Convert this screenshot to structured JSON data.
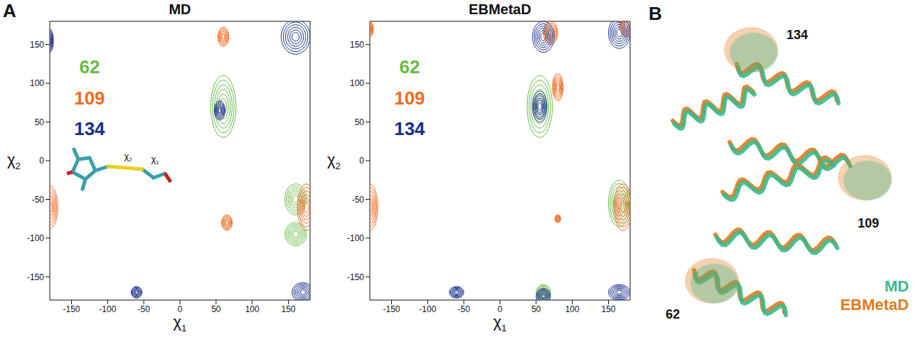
{
  "chart_data": [
    {
      "type": "contour",
      "title": "MD",
      "x_label": "χ1",
      "y_label": "χ2",
      "xlim": [
        -180,
        180
      ],
      "ylim": [
        -180,
        180
      ],
      "xticks": [
        -150,
        -100,
        -50,
        0,
        50,
        100,
        150
      ],
      "yticks": [
        -150,
        -100,
        -50,
        0,
        50,
        100,
        150
      ],
      "grid": false,
      "series": [
        {
          "name": "62",
          "color": "#66bb44",
          "contours": [
            {
              "x": 60,
              "y": 70,
              "width": 35,
              "height": 80
            },
            {
              "x": 160,
              "y": -50,
              "width": 30,
              "height": 40
            },
            {
              "x": 160,
              "y": -95,
              "width": 30,
              "height": 30
            }
          ]
        },
        {
          "name": "109",
          "color": "#f06a1f",
          "contours": [
            {
              "x": -180,
              "y": -60,
              "width": 22,
              "height": 55
            },
            {
              "x": 175,
              "y": -60,
              "width": 25,
              "height": 60
            },
            {
              "x": 65,
              "y": -80,
              "width": 15,
              "height": 20
            },
            {
              "x": 60,
              "y": 160,
              "width": 15,
              "height": 25
            }
          ]
        },
        {
          "name": "134",
          "color": "#1a2f8c",
          "contours": [
            {
              "x": 160,
              "y": 160,
              "width": 40,
              "height": 45
            },
            {
              "x": -180,
              "y": 155,
              "width": 10,
              "height": 30
            },
            {
              "x": 55,
              "y": 65,
              "width": 15,
              "height": 25
            },
            {
              "x": 170,
              "y": -170,
              "width": 30,
              "height": 25
            },
            {
              "x": -60,
              "y": -170,
              "width": 15,
              "height": 15
            }
          ]
        }
      ]
    },
    {
      "type": "contour",
      "title": "EBMetaD",
      "x_label": "χ1",
      "y_label": "χ2",
      "xlim": [
        -180,
        180
      ],
      "ylim": [
        -180,
        180
      ],
      "xticks": [
        -150,
        -100,
        -50,
        0,
        50,
        100,
        150
      ],
      "yticks": [
        -150,
        -100,
        -50,
        0,
        50,
        100,
        150
      ],
      "grid": false,
      "series": [
        {
          "name": "62",
          "color": "#66bb44",
          "contours": [
            {
              "x": 55,
              "y": 70,
              "width": 35,
              "height": 80
            },
            {
              "x": 165,
              "y": -55,
              "width": 30,
              "height": 60
            },
            {
              "x": 60,
              "y": -170,
              "width": 20,
              "height": 20
            }
          ]
        },
        {
          "name": "109",
          "color": "#f06a1f",
          "contours": [
            {
              "x": -180,
              "y": -60,
              "width": 22,
              "height": 60
            },
            {
              "x": 170,
              "y": -60,
              "width": 25,
              "height": 60
            },
            {
              "x": 175,
              "y": 175,
              "width": 20,
              "height": 30
            },
            {
              "x": 80,
              "y": 95,
              "width": 15,
              "height": 35
            },
            {
              "x": -180,
              "y": 170,
              "width": 10,
              "height": 20
            },
            {
              "x": 70,
              "y": 165,
              "width": 20,
              "height": 30
            },
            {
              "x": 80,
              "y": -75,
              "width": 8,
              "height": 10
            }
          ]
        },
        {
          "name": "134",
          "color": "#1a2f8c",
          "contours": [
            {
              "x": 55,
              "y": 70,
              "width": 20,
              "height": 40
            },
            {
              "x": 60,
              "y": 160,
              "width": 30,
              "height": 40
            },
            {
              "x": 165,
              "y": 165,
              "width": 30,
              "height": 40
            },
            {
              "x": -60,
              "y": -170,
              "width": 20,
              "height": 15
            },
            {
              "x": 165,
              "y": -170,
              "width": 30,
              "height": 20
            },
            {
              "x": 60,
              "y": -175,
              "width": 20,
              "height": 20
            }
          ]
        }
      ]
    }
  ],
  "panel_a": {
    "letter": "A",
    "inset_labels": [
      "χ2",
      "χ1"
    ]
  },
  "panel_b": {
    "letter": "B",
    "residues": [
      "134",
      "109",
      "62"
    ],
    "legend": [
      {
        "name": "MD",
        "color": "#3cb98a"
      },
      {
        "name": "EBMetaD",
        "color": "#e07a20"
      }
    ]
  }
}
